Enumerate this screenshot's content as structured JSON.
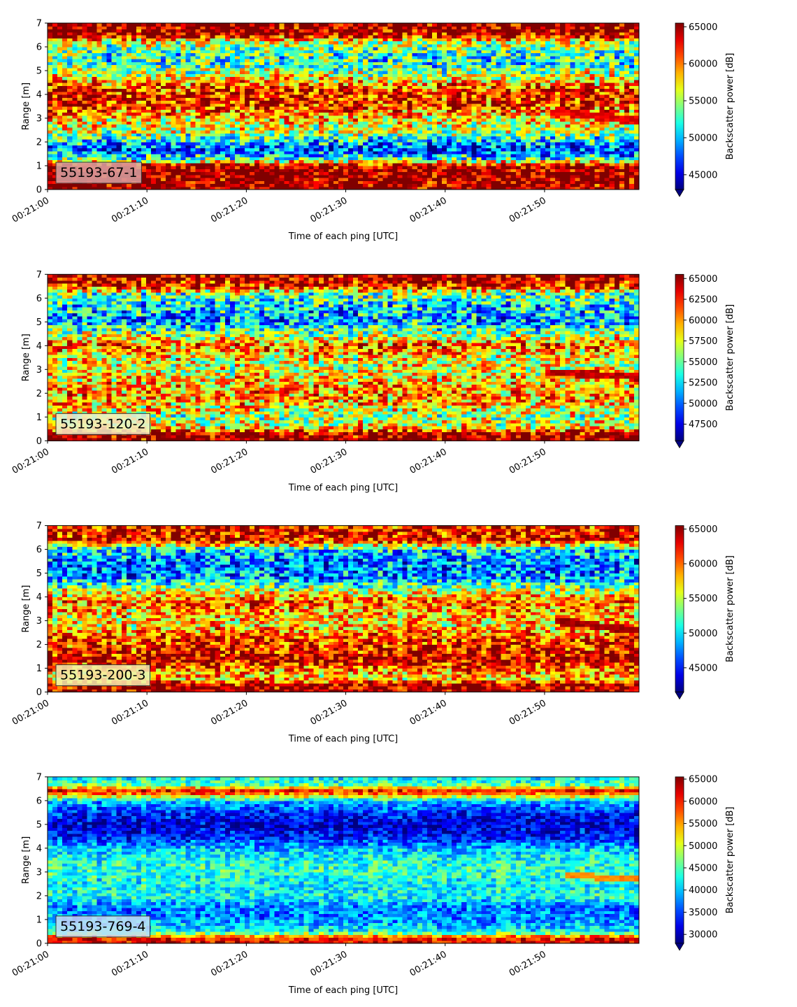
{
  "chart_data": [
    {
      "type": "heatmap",
      "panel_label": "55193-67-1",
      "xlabel": "Time of each ping [UTC]",
      "ylabel": "Range [m]",
      "colorbar_label": "Backscatter power [dB]",
      "colormap": "jet",
      "colorbar_extend": "min",
      "x_ticks": [
        "00:21:00",
        "00:21:10",
        "00:21:20",
        "00:21:30",
        "00:21:40",
        "00:21:50"
      ],
      "x_range_seconds": [
        0,
        59.5
      ],
      "y_ticks": [
        0,
        1,
        2,
        3,
        4,
        5,
        6,
        7
      ],
      "ylim": [
        0,
        7
      ],
      "clim": [
        43000,
        65500
      ],
      "colorbar_ticks": [
        45000,
        50000,
        55000,
        60000,
        65000
      ],
      "label_box_color": "#d9a3a3",
      "range_profile": [
        {
          "r": 0.0,
          "v": 65500
        },
        {
          "r": 0.25,
          "v": 65000
        },
        {
          "r": 0.6,
          "v": 65500
        },
        {
          "r": 1.0,
          "v": 65000
        },
        {
          "r": 1.3,
          "v": 52000
        },
        {
          "r": 1.7,
          "v": 47000
        },
        {
          "r": 2.0,
          "v": 50000
        },
        {
          "r": 2.4,
          "v": 55000
        },
        {
          "r": 3.0,
          "v": 58000
        },
        {
          "r": 3.6,
          "v": 62000
        },
        {
          "r": 4.2,
          "v": 62000
        },
        {
          "r": 4.8,
          "v": 56000
        },
        {
          "r": 5.3,
          "v": 52000
        },
        {
          "r": 5.9,
          "v": 53000
        },
        {
          "r": 6.2,
          "v": 56000
        },
        {
          "r": 6.5,
          "v": 64000
        },
        {
          "r": 7.0,
          "v": 65500
        }
      ],
      "noise": 5500,
      "layer": {
        "start_s": 51,
        "end_s": 59.5,
        "r0": 3.3,
        "r1": 2.9,
        "width": 0.35,
        "v": 63000
      }
    },
    {
      "type": "heatmap",
      "panel_label": "55193-120-2",
      "xlabel": "Time of each ping [UTC]",
      "ylabel": "Range [m]",
      "colorbar_label": "Backscatter power [dB]",
      "colormap": "jet",
      "colorbar_extend": "min",
      "x_ticks": [
        "00:21:00",
        "00:21:10",
        "00:21:20",
        "00:21:30",
        "00:21:40",
        "00:21:50"
      ],
      "x_range_seconds": [
        0,
        59.5
      ],
      "y_ticks": [
        0,
        1,
        2,
        3,
        4,
        5,
        6,
        7
      ],
      "ylim": [
        0,
        7
      ],
      "clim": [
        45500,
        65500
      ],
      "colorbar_ticks": [
        47500,
        50000,
        52500,
        55000,
        57500,
        60000,
        62500,
        65000
      ],
      "label_box_color": "#f2f0c8",
      "range_profile": [
        {
          "r": 0.0,
          "v": 65500
        },
        {
          "r": 0.3,
          "v": 65000
        },
        {
          "r": 0.6,
          "v": 58000
        },
        {
          "r": 1.0,
          "v": 56000
        },
        {
          "r": 1.5,
          "v": 59000
        },
        {
          "r": 2.0,
          "v": 60000
        },
        {
          "r": 2.5,
          "v": 59000
        },
        {
          "r": 3.0,
          "v": 57000
        },
        {
          "r": 3.5,
          "v": 58000
        },
        {
          "r": 4.0,
          "v": 61000
        },
        {
          "r": 4.5,
          "v": 56000
        },
        {
          "r": 5.0,
          "v": 51000
        },
        {
          "r": 5.6,
          "v": 52000
        },
        {
          "r": 6.2,
          "v": 55000
        },
        {
          "r": 6.5,
          "v": 63000
        },
        {
          "r": 7.0,
          "v": 65500
        }
      ],
      "noise": 5000,
      "layer": {
        "start_s": 50,
        "end_s": 59.5,
        "r0": 2.9,
        "r1": 2.7,
        "width": 0.3,
        "v": 64000
      }
    },
    {
      "type": "heatmap",
      "panel_label": "55193-200-3",
      "xlabel": "Time of each ping [UTC]",
      "ylabel": "Range [m]",
      "colorbar_label": "Backscatter power [dB]",
      "colormap": "jet",
      "colorbar_extend": "min",
      "x_ticks": [
        "00:21:00",
        "00:21:10",
        "00:21:20",
        "00:21:30",
        "00:21:40",
        "00:21:50"
      ],
      "x_range_seconds": [
        0,
        59.5
      ],
      "y_ticks": [
        0,
        1,
        2,
        3,
        4,
        5,
        6,
        7
      ],
      "ylim": [
        0,
        7
      ],
      "clim": [
        41500,
        65500
      ],
      "colorbar_ticks": [
        45000,
        50000,
        55000,
        60000,
        65000
      ],
      "label_box_color": "#f2f0b0",
      "range_profile": [
        {
          "r": 0.0,
          "v": 65500
        },
        {
          "r": 0.3,
          "v": 64000
        },
        {
          "r": 0.6,
          "v": 57000
        },
        {
          "r": 1.0,
          "v": 60000
        },
        {
          "r": 1.4,
          "v": 64000
        },
        {
          "r": 1.8,
          "v": 62000
        },
        {
          "r": 2.3,
          "v": 61000
        },
        {
          "r": 2.8,
          "v": 57000
        },
        {
          "r": 3.3,
          "v": 58000
        },
        {
          "r": 3.8,
          "v": 60000
        },
        {
          "r": 4.3,
          "v": 55000
        },
        {
          "r": 4.8,
          "v": 48000
        },
        {
          "r": 5.4,
          "v": 47000
        },
        {
          "r": 6.0,
          "v": 50000
        },
        {
          "r": 6.4,
          "v": 63000
        },
        {
          "r": 7.0,
          "v": 62000
        }
      ],
      "noise": 5500,
      "layer": {
        "start_s": 51,
        "end_s": 59.5,
        "r0": 3.0,
        "r1": 2.6,
        "width": 0.3,
        "v": 64500
      }
    },
    {
      "type": "heatmap",
      "panel_label": "55193-769-4",
      "xlabel": "Time of each ping [UTC]",
      "ylabel": "Range [m]",
      "colorbar_label": "Backscatter power [dB]",
      "colormap": "jet",
      "colorbar_extend": "min",
      "x_ticks": [
        "00:21:00",
        "00:21:10",
        "00:21:20",
        "00:21:30",
        "00:21:40",
        "00:21:50"
      ],
      "x_range_seconds": [
        0,
        59.5
      ],
      "y_ticks": [
        0,
        1,
        2,
        3,
        4,
        5,
        6,
        7
      ],
      "ylim": [
        0,
        7
      ],
      "clim": [
        28000,
        65500
      ],
      "colorbar_ticks": [
        30000,
        35000,
        40000,
        45000,
        50000,
        55000,
        60000,
        65000
      ],
      "label_box_color": "#c8def5",
      "range_profile": [
        {
          "r": 0.0,
          "v": 62000
        },
        {
          "r": 0.25,
          "v": 60000
        },
        {
          "r": 0.5,
          "v": 42000
        },
        {
          "r": 1.0,
          "v": 38000
        },
        {
          "r": 1.5,
          "v": 37000
        },
        {
          "r": 2.0,
          "v": 43000
        },
        {
          "r": 2.5,
          "v": 42000
        },
        {
          "r": 3.0,
          "v": 44000
        },
        {
          "r": 3.5,
          "v": 43000
        },
        {
          "r": 4.0,
          "v": 40000
        },
        {
          "r": 4.5,
          "v": 33000
        },
        {
          "r": 5.0,
          "v": 31000
        },
        {
          "r": 5.5,
          "v": 34000
        },
        {
          "r": 6.0,
          "v": 40000
        },
        {
          "r": 6.4,
          "v": 62000
        },
        {
          "r": 6.7,
          "v": 45000
        },
        {
          "r": 7.0,
          "v": 42000
        }
      ],
      "noise": 5000,
      "layer": {
        "start_s": 52,
        "end_s": 59.5,
        "r0": 2.9,
        "r1": 2.7,
        "width": 0.25,
        "v": 56000
      }
    }
  ]
}
